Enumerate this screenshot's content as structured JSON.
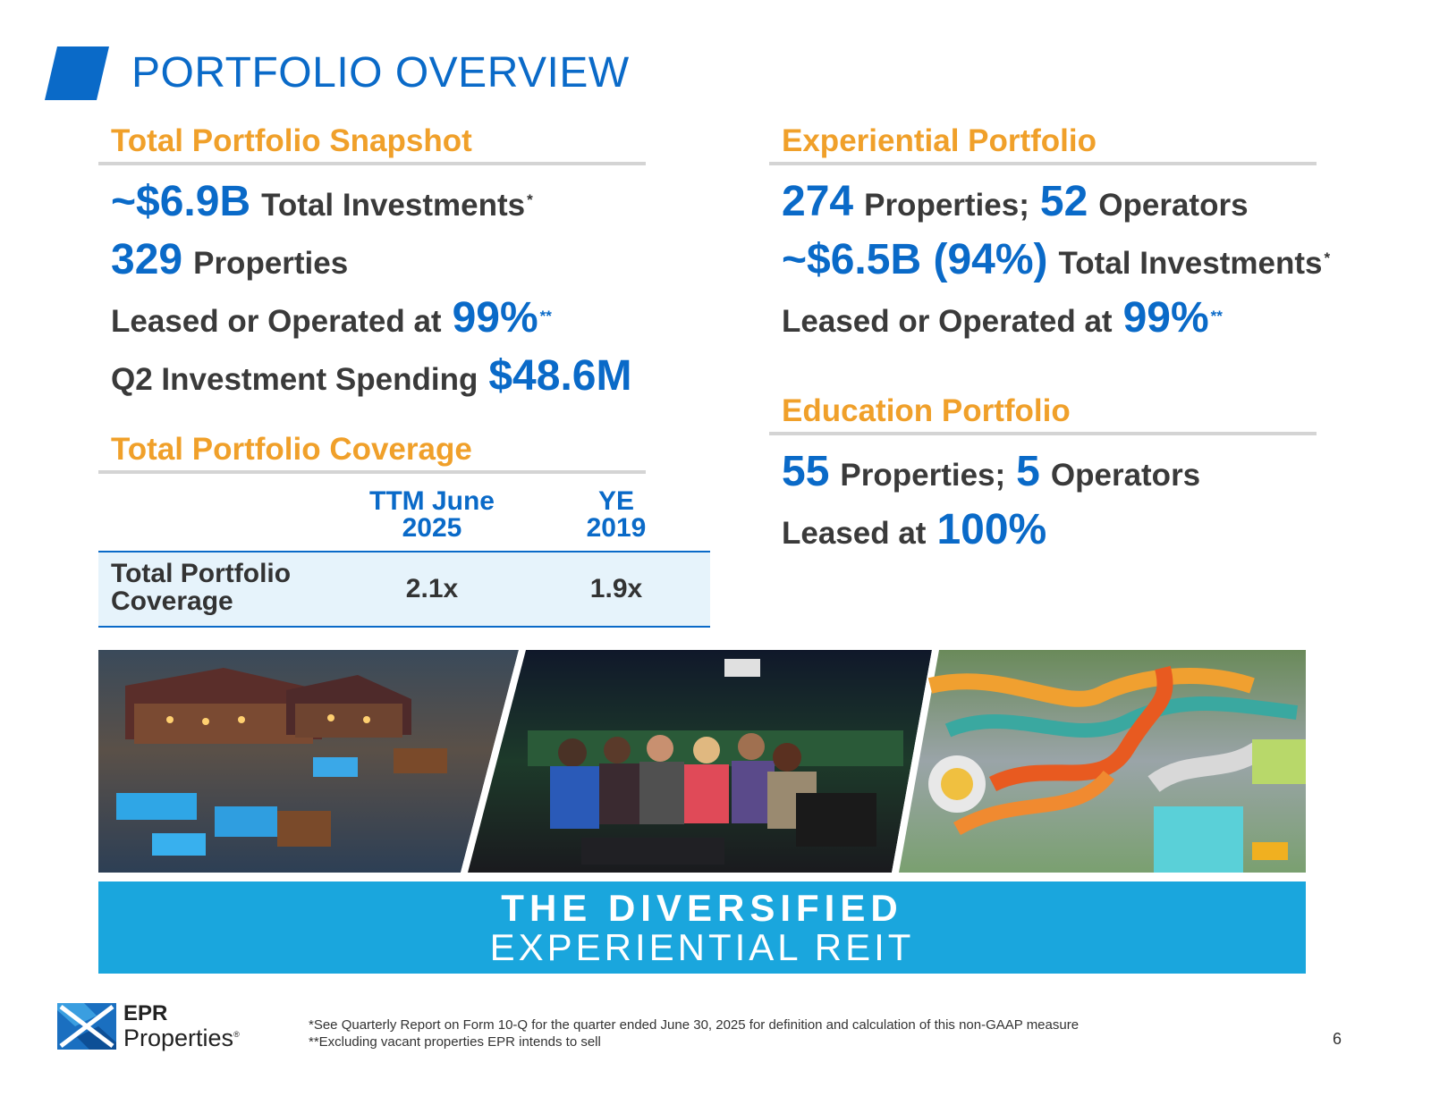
{
  "title": "PORTFOLIO OVERVIEW",
  "colors": {
    "brand_blue": "#0a6ac8",
    "accent_orange": "#f0a02a",
    "banner_blue": "#1aa6dd",
    "table_fill": "#e6f3fb"
  },
  "snapshot": {
    "heading": "Total Portfolio Snapshot",
    "investments_value": "~$6.9B",
    "investments_label": "Total Investments",
    "investments_mark": "*",
    "properties_value": "329",
    "properties_label": "Properties",
    "leased_label": "Leased or Operated at",
    "leased_value": "99%",
    "leased_mark": "**",
    "spending_label": "Q2 Investment Spending",
    "spending_value": "$48.6M"
  },
  "coverage": {
    "heading": "Total Portfolio Coverage",
    "col1_line1": "TTM June",
    "col1_line2": "2025",
    "col2_line1": "YE",
    "col2_line2": "2019",
    "row_label_line1": "Total Portfolio",
    "row_label_line2": "Coverage",
    "value_ttm": "2.1x",
    "value_ye": "1.9x"
  },
  "experiential": {
    "heading": "Experiential Portfolio",
    "properties_value": "274",
    "properties_label": "Properties;",
    "operators_value": "52",
    "operators_label": "Operators",
    "investments_value": "~$6.5B (94%)",
    "investments_label": "Total Investments",
    "investments_mark": "*",
    "leased_label": "Leased or Operated at",
    "leased_value": "99%",
    "leased_mark": "**"
  },
  "education": {
    "heading": "Education Portfolio",
    "properties_value": "55",
    "properties_label": "Properties;",
    "operators_value": "5",
    "operators_label": "Operators",
    "leased_label": "Leased at",
    "leased_value": "100%"
  },
  "photos": [
    "resort-lodge-hot-springs",
    "friends-toasting-entertainment-venue",
    "waterpark-slides"
  ],
  "banner": {
    "line1": "THE DIVERSIFIED",
    "line2": "EXPERIENTIAL REIT"
  },
  "footer": {
    "logo_line1": "EPR",
    "logo_line2": "Properties",
    "logo_reg": "®",
    "footnote1": "*See Quarterly Report on Form 10-Q for the quarter ended June 30, 2025 for definition and calculation of this non-GAAP measure",
    "footnote2": "**Excluding vacant properties EPR intends to sell",
    "page_number": "6"
  }
}
